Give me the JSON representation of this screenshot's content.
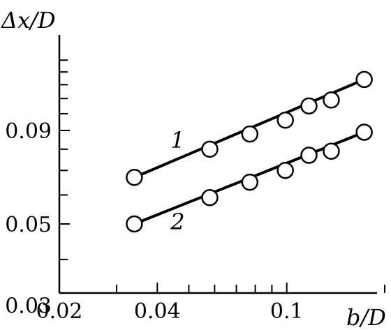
{
  "chart_data": {
    "type": "line",
    "xlabel": "b/D",
    "ylabel": "Δx/D",
    "xscale": "log",
    "yscale": "log",
    "xlim": [
      0.02,
      0.2
    ],
    "ylim": [
      0.03,
      0.16
    ],
    "xticks": [
      {
        "value": 0.02,
        "label": "0.02"
      },
      {
        "value": 0.04,
        "label": "0.04"
      },
      {
        "value": 0.1,
        "label": "0.1"
      }
    ],
    "yticks": [
      {
        "value": 0.03,
        "label": "0.03"
      },
      {
        "value": 0.05,
        "label": "0.05"
      },
      {
        "value": 0.09,
        "label": "0.09"
      }
    ],
    "x_minor_ticks": [
      0.03,
      0.05,
      0.06,
      0.07,
      0.08,
      0.09,
      0.2
    ],
    "y_minor_ticks": [
      0.04,
      0.06,
      0.07,
      0.08,
      0.1,
      0.11,
      0.12,
      0.13,
      0.14
    ],
    "series": [
      {
        "label": "1",
        "x": [
          0.034,
          0.058,
          0.077,
          0.099,
          0.117,
          0.137,
          0.173
        ],
        "y": [
          0.067,
          0.08,
          0.088,
          0.096,
          0.105,
          0.109,
          0.124
        ]
      },
      {
        "label": "2",
        "x": [
          0.034,
          0.058,
          0.077,
          0.099,
          0.117,
          0.137,
          0.173
        ],
        "y": [
          0.05,
          0.059,
          0.065,
          0.07,
          0.077,
          0.079,
          0.089
        ]
      }
    ],
    "grid": false
  }
}
